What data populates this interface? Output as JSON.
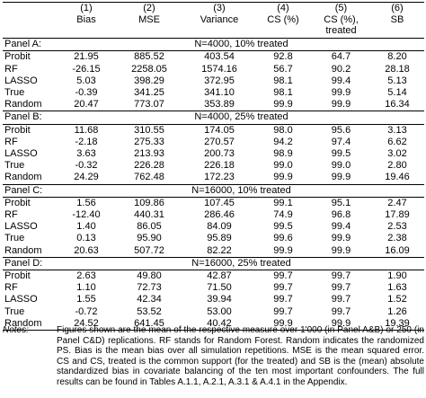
{
  "table": {
    "col_numbers": [
      "",
      "(1)",
      "(2)",
      "(3)",
      "(4)",
      "(5)",
      "(6)"
    ],
    "col_names": [
      "",
      "Bias",
      "MSE",
      "Variance",
      "CS (%)",
      "CS (%), treated",
      "SB"
    ],
    "panels": [
      {
        "title": "Panel A:",
        "setting": "N=4000, 10% treated",
        "rows": [
          [
            "Probit",
            "21.95",
            "885.52",
            "403.54",
            "92.8",
            "64.7",
            "8.20"
          ],
          [
            "RF",
            "-26.15",
            "2258.05",
            "1574.16",
            "56.7",
            "90.2",
            "28.18"
          ],
          [
            "LASSO",
            "5.03",
            "398.29",
            "372.95",
            "98.1",
            "99.4",
            "5.13"
          ],
          [
            "True",
            "-0.39",
            "341.25",
            "341.10",
            "98.1",
            "99.9",
            "5.14"
          ],
          [
            "Random",
            "20.47",
            "773.07",
            "353.89",
            "99.9",
            "99.9",
            "16.34"
          ]
        ]
      },
      {
        "title": "Panel B:",
        "setting": "N=4000, 25% treated",
        "rows": [
          [
            "Probit",
            "11.68",
            "310.55",
            "174.05",
            "98.0",
            "95.6",
            "3.13"
          ],
          [
            "RF",
            "-2.18",
            "275.33",
            "270.57",
            "94.2",
            "97.4",
            "6.62"
          ],
          [
            "LASSO",
            "3.63",
            "213.93",
            "200.73",
            "98.9",
            "99.5",
            "3.02"
          ],
          [
            "True",
            "-0.32",
            "226.28",
            "226.18",
            "99.0",
            "99.0",
            "2.80"
          ],
          [
            "Random",
            "24.29",
            "762.48",
            "172.23",
            "99.9",
            "99.9",
            "19.46"
          ]
        ]
      },
      {
        "title": "Panel C:",
        "setting": "N=16000, 10% treated",
        "rows": [
          [
            "Probit",
            "1.56",
            "109.86",
            "107.45",
            "99.1",
            "95.1",
            "2.47"
          ],
          [
            "RF",
            "-12.40",
            "440.31",
            "286.46",
            "74.9",
            "96.8",
            "17.89"
          ],
          [
            "LASSO",
            "1.40",
            "86.05",
            "84.09",
            "99.5",
            "99.4",
            "2.53"
          ],
          [
            "True",
            "0.13",
            "95.90",
            "95.89",
            "99.6",
            "99.9",
            "2.38"
          ],
          [
            "Random",
            "20.63",
            "507.72",
            "82.22",
            "99.9",
            "99.9",
            "16.09"
          ]
        ]
      },
      {
        "title": "Panel D:",
        "setting": "N=16000, 25% treated",
        "rows": [
          [
            "Probit",
            "2.63",
            "49.80",
            "42.87",
            "99.7",
            "99.7",
            "1.90"
          ],
          [
            "RF",
            "1.10",
            "72.73",
            "71.50",
            "99.7",
            "99.7",
            "1.63"
          ],
          [
            "LASSO",
            "1.55",
            "42.34",
            "39.94",
            "99.7",
            "99.7",
            "1.52"
          ],
          [
            "True",
            "-0.72",
            "53.52",
            "53.00",
            "99.7",
            "99.7",
            "1.26"
          ],
          [
            "Random",
            "24.52",
            "641.45",
            "40.42",
            "99.9",
            "99.9",
            "19.39"
          ]
        ]
      }
    ]
  },
  "notes": {
    "label": "Notes:",
    "text": "Figures shown are the mean of the respective measure over 1'000 (in Panel A&B) or 250 (in Panel C&D) replications. RF stands for Random Forest. Random indicates the randomized PS. Bias is the mean bias over all simulation repetitions. MSE is the mean squared error. CS and CS, treated is the common support (for the treated) and SB is the (mean) absolute standardized bias in covariate balancing of the ten most important confounders. The full results can be found in Tables A.1.1, A.2.1, A.3.1 & A.4.1 in the Appendix."
  }
}
